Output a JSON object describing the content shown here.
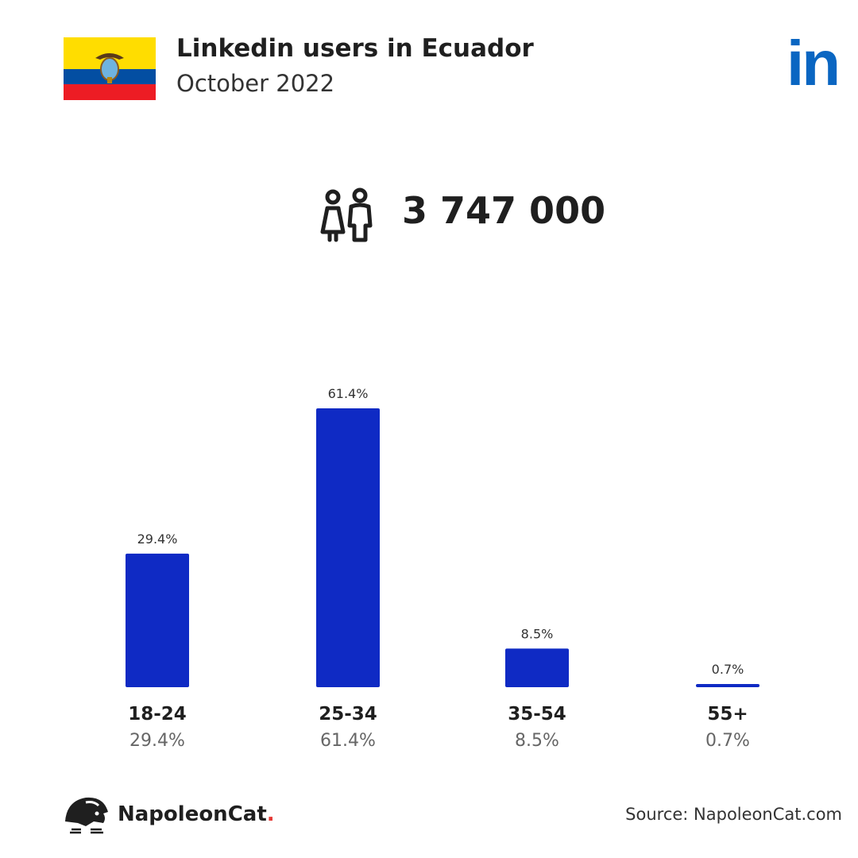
{
  "header": {
    "title": "Linkedin users in Ecuador",
    "subtitle": "October 2022",
    "flag_icon": "ecuador-flag-icon",
    "logo_icon": "linkedin-logo-icon",
    "logo_text": "in"
  },
  "summary": {
    "total_users": "3 747 000",
    "icon": "people-icon"
  },
  "chart_data": {
    "type": "bar",
    "title": "",
    "xlabel": "",
    "ylabel": "",
    "categories": [
      "18-24",
      "25-34",
      "35-54",
      "55+"
    ],
    "values": [
      29.4,
      61.4,
      8.5,
      0.7
    ],
    "value_labels": [
      "29.4%",
      "61.4%",
      "8.5%",
      "0.7%"
    ],
    "unit": "%",
    "ylim": [
      0,
      61.4
    ],
    "grid": false,
    "bar_color": "#0f2ac4"
  },
  "footer": {
    "brand": "NapoleonCat",
    "brand_dot": ".",
    "source": "Source: NapoleonCat.com",
    "brand_icon": "napoleoncat-logo-icon",
    "accent_color": "#e53935"
  }
}
